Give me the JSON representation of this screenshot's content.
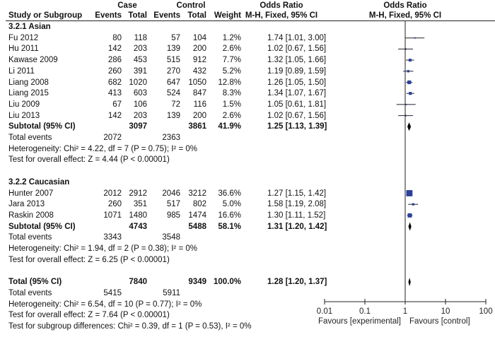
{
  "header": {
    "case_label": "Case",
    "control_label": "Control",
    "or_label": "Odds Ratio",
    "or_label_plot": "Odds Ratio",
    "study_col": "Study or Subgroup",
    "events_col": "Events",
    "total_col": "Total",
    "events_col2": "Events",
    "total_col2": "Total",
    "weight_col": "Weight",
    "method_col": "M-H, Fixed, 95% CI",
    "method_col_plot": "M-H, Fixed, 95% CI"
  },
  "chart_data": {
    "type": "forest",
    "scale": "log",
    "xlim": [
      0.01,
      100
    ],
    "x_ticks": [
      "0.01",
      "0.1",
      "1",
      "10",
      "100"
    ],
    "x_tick_values": [
      0.01,
      0.1,
      1,
      10,
      100
    ],
    "favours_left": "Favours [experimental]",
    "favours_right": "Favours [control]",
    "colors": {
      "study": "#2b3f9e",
      "diamond": "#000000"
    },
    "groups": [
      {
        "title": "3.2.1 Asian",
        "studies": [
          {
            "name": "Fu 2012",
            "case_events": "80",
            "case_total": "118",
            "ctrl_events": "57",
            "ctrl_total": "104",
            "weight": "1.2%",
            "w": 1.2,
            "or_text": "1.74 [1.01, 3.00]",
            "or": 1.74,
            "lo": 1.01,
            "hi": 3.0
          },
          {
            "name": "Hu 2011",
            "case_events": "142",
            "case_total": "203",
            "ctrl_events": "139",
            "ctrl_total": "200",
            "weight": "2.6%",
            "w": 2.6,
            "or_text": "1.02 [0.67, 1.56]",
            "or": 1.02,
            "lo": 0.67,
            "hi": 1.56
          },
          {
            "name": "Kawase 2009",
            "case_events": "286",
            "case_total": "453",
            "ctrl_events": "515",
            "ctrl_total": "912",
            "weight": "7.7%",
            "w": 7.7,
            "or_text": "1.32 [1.05, 1.66]",
            "or": 1.32,
            "lo": 1.05,
            "hi": 1.66
          },
          {
            "name": "Li 2011",
            "case_events": "260",
            "case_total": "391",
            "ctrl_events": "270",
            "ctrl_total": "432",
            "weight": "5.2%",
            "w": 5.2,
            "or_text": "1.19 [0.89, 1.59]",
            "or": 1.19,
            "lo": 0.89,
            "hi": 1.59
          },
          {
            "name": "Liang 2008",
            "case_events": "682",
            "case_total": "1020",
            "ctrl_events": "647",
            "ctrl_total": "1050",
            "weight": "12.8%",
            "w": 12.8,
            "or_text": "1.26 [1.05, 1.50]",
            "or": 1.26,
            "lo": 1.05,
            "hi": 1.5
          },
          {
            "name": "Liang 2015",
            "case_events": "413",
            "case_total": "603",
            "ctrl_events": "524",
            "ctrl_total": "847",
            "weight": "8.3%",
            "w": 8.3,
            "or_text": "1.34 [1.07, 1.67]",
            "or": 1.34,
            "lo": 1.07,
            "hi": 1.67
          },
          {
            "name": "Liu 2009",
            "case_events": "67",
            "case_total": "106",
            "ctrl_events": "72",
            "ctrl_total": "116",
            "weight": "1.5%",
            "w": 1.5,
            "or_text": "1.05 [0.61, 1.81]",
            "or": 1.05,
            "lo": 0.61,
            "hi": 1.81
          },
          {
            "name": "Liu 2013",
            "case_events": "142",
            "case_total": "203",
            "ctrl_events": "139",
            "ctrl_total": "200",
            "weight": "2.6%",
            "w": 2.6,
            "or_text": "1.02 [0.67, 1.56]",
            "or": 1.02,
            "lo": 0.67,
            "hi": 1.56
          }
        ],
        "subtotal": {
          "label": "Subtotal (95% CI)",
          "case_total": "3097",
          "ctrl_total": "3861",
          "weight": "41.9%",
          "or_text": "1.25 [1.13, 1.39]",
          "or": 1.25,
          "lo": 1.13,
          "hi": 1.39
        },
        "total_events": {
          "label": "Total events",
          "case": "2072",
          "ctrl": "2363"
        },
        "heterogeneity": "Heterogeneity: Chi² = 4.22, df = 7 (P = 0.75); I² = 0%",
        "overall": "Test for overall effect: Z = 4.44 (P < 0.00001)"
      },
      {
        "title": "3.2.2 Caucasian",
        "studies": [
          {
            "name": "Hunter 2007",
            "case_events": "2012",
            "case_total": "2912",
            "ctrl_events": "2046",
            "ctrl_total": "3212",
            "weight": "36.6%",
            "w": 36.6,
            "or_text": "1.27 [1.15, 1.42]",
            "or": 1.27,
            "lo": 1.15,
            "hi": 1.42
          },
          {
            "name": "Jara 2013",
            "case_events": "260",
            "case_total": "351",
            "ctrl_events": "517",
            "ctrl_total": "802",
            "weight": "5.0%",
            "w": 5.0,
            "or_text": "1.58 [1.19, 2.08]",
            "or": 1.58,
            "lo": 1.19,
            "hi": 2.08
          },
          {
            "name": "Raskin 2008",
            "case_events": "1071",
            "case_total": "1480",
            "ctrl_events": "985",
            "ctrl_total": "1474",
            "weight": "16.6%",
            "w": 16.6,
            "or_text": "1.30 [1.11, 1.52]",
            "or": 1.3,
            "lo": 1.11,
            "hi": 1.52
          }
        ],
        "subtotal": {
          "label": "Subtotal (95% CI)",
          "case_total": "4743",
          "ctrl_total": "5488",
          "weight": "58.1%",
          "or_text": "1.31 [1.20, 1.42]",
          "or": 1.31,
          "lo": 1.2,
          "hi": 1.42
        },
        "total_events": {
          "label": "Total events",
          "case": "3343",
          "ctrl": "3548"
        },
        "heterogeneity": "Heterogeneity: Chi² = 1.94, df = 2 (P = 0.38); I² = 0%",
        "overall": "Test for overall effect: Z = 6.25 (P < 0.00001)"
      }
    ],
    "total": {
      "label": "Total (95% CI)",
      "case_total": "7840",
      "ctrl_total": "9349",
      "weight": "100.0%",
      "or_text": "1.28 [1.20, 1.37]",
      "or": 1.28,
      "lo": 1.2,
      "hi": 1.37
    },
    "total_events": {
      "label": "Total events",
      "case": "5415",
      "ctrl": "5911"
    },
    "heterogeneity": "Heterogeneity: Chi² = 6.54, df = 10 (P = 0.77); I² = 0%",
    "overall": "Test for overall effect: Z = 7.64 (P < 0.00001)",
    "subgroup_test": "Test for subgroup differences: Chi² = 0.39, df = 1 (P = 0.53), I² = 0%"
  }
}
